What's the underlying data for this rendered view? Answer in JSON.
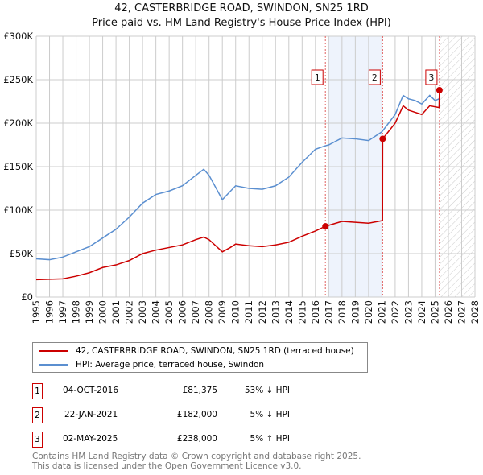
{
  "chart_data": {
    "type": "line",
    "title": "42, CASTERBRIDGE ROAD, SWINDON, SN25 1RD",
    "subtitle": "Price paid vs. HM Land Registry's House Price Index (HPI)",
    "xlim": [
      1995,
      2028
    ],
    "ylim": [
      0,
      300000
    ],
    "x_ticks": [
      "1995",
      "1996",
      "1997",
      "1998",
      "1999",
      "2000",
      "2001",
      "2002",
      "2003",
      "2004",
      "2005",
      "2006",
      "2007",
      "2008",
      "2009",
      "2010",
      "2011",
      "2012",
      "2013",
      "2014",
      "2015",
      "2016",
      "2017",
      "2018",
      "2019",
      "2020",
      "2021",
      "2022",
      "2023",
      "2024",
      "2025",
      "2026",
      "2027",
      "2028"
    ],
    "y_ticks": [
      {
        "v": 0,
        "label": "£0"
      },
      {
        "v": 50000,
        "label": "£50K"
      },
      {
        "v": 100000,
        "label": "£100K"
      },
      {
        "v": 150000,
        "label": "£150K"
      },
      {
        "v": 200000,
        "label": "£200K"
      },
      {
        "v": 250000,
        "label": "£250K"
      },
      {
        "v": 300000,
        "label": "£300K"
      }
    ],
    "grid": true,
    "shaded_range": [
      2017,
      2021.06
    ],
    "hatched_from": 2025.33,
    "series": [
      {
        "name": "42, CASTERBRIDGE ROAD, SWINDON, SN25 1RD (terraced house)",
        "color": "#cc0000",
        "x": [
          1995,
          1997,
          1998,
          1999,
          2000,
          2001,
          2002,
          2003,
          2004,
          2005,
          2006,
          2007,
          2007.6,
          2008,
          2009,
          2009.6,
          2010,
          2011,
          2012,
          2013,
          2014,
          2015,
          2016,
          2016.75,
          2018,
          2019,
          2020,
          2021.05,
          2021.06,
          2022,
          2022.6,
          2023,
          2024,
          2024.6,
          2025.3,
          2025.33
        ],
        "y": [
          20000,
          21000,
          24000,
          28000,
          34000,
          37000,
          42000,
          50000,
          54000,
          57000,
          60000,
          66000,
          69000,
          66000,
          52000,
          57000,
          61000,
          59000,
          58000,
          60000,
          63000,
          70000,
          76000,
          81375,
          87000,
          86000,
          85000,
          88000,
          182000,
          200000,
          220000,
          215000,
          210000,
          220000,
          218000,
          238000
        ]
      },
      {
        "name": "HPI: Average price, terraced house, Swindon",
        "color": "#5b8fd0",
        "x": [
          1995,
          1996,
          1997,
          1998,
          1999,
          2000,
          2001,
          2002,
          2003,
          2004,
          2005,
          2006,
          2007,
          2007.6,
          2008,
          2009,
          2009.5,
          2010,
          2011,
          2012,
          2013,
          2014,
          2015,
          2016,
          2016.75,
          2017,
          2018,
          2019,
          2020,
          2021,
          2022,
          2022.6,
          2023,
          2023.5,
          2024,
          2024.6,
          2025,
          2025.3
        ],
        "y": [
          44000,
          43000,
          46000,
          52000,
          58000,
          68000,
          78000,
          92000,
          108000,
          118000,
          122000,
          128000,
          140000,
          147000,
          140000,
          112000,
          120000,
          128000,
          125000,
          124000,
          128000,
          138000,
          155000,
          170000,
          174000,
          175000,
          183000,
          182000,
          180000,
          190000,
          210000,
          232000,
          228000,
          226000,
          222000,
          232000,
          226000,
          228000
        ]
      }
    ],
    "markers": [
      {
        "label": "1",
        "x": 2016.75,
        "y": 81375
      },
      {
        "label": "2",
        "x": 2021.06,
        "y": 182000
      },
      {
        "label": "3",
        "x": 2025.33,
        "y": 238000
      }
    ]
  },
  "legend": [
    "42, CASTERBRIDGE ROAD, SWINDON, SN25 1RD (terraced house)",
    "HPI: Average price, terraced house, Swindon"
  ],
  "sales": [
    {
      "num": "1",
      "date": "04-OCT-2016",
      "price": "£81,375",
      "hpi": "53% ↓ HPI"
    },
    {
      "num": "2",
      "date": "22-JAN-2021",
      "price": "£182,000",
      "hpi": "5% ↓ HPI"
    },
    {
      "num": "3",
      "date": "02-MAY-2025",
      "price": "£238,000",
      "hpi": "5% ↑ HPI"
    }
  ],
  "footer": [
    "Contains HM Land Registry data © Crown copyright and database right 2025.",
    "This data is licensed under the Open Government Licence v3.0."
  ]
}
